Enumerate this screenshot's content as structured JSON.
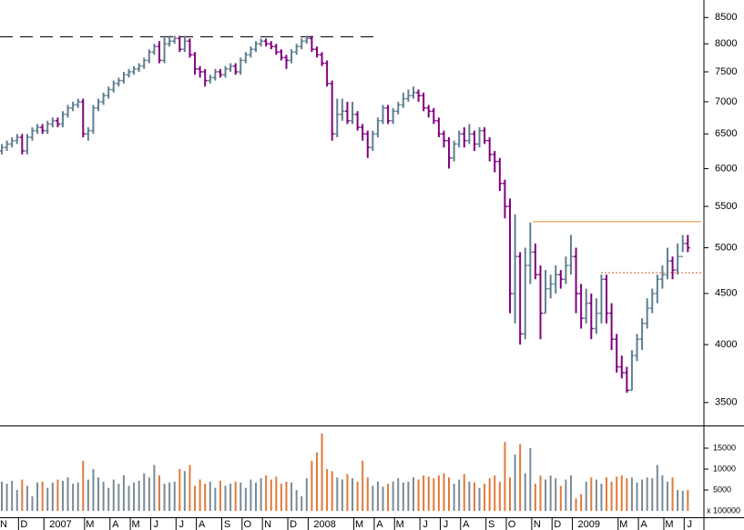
{
  "chart_data": {
    "type": "ohlc",
    "categories": [
      "N",
      null,
      null,
      null,
      "D",
      null,
      null,
      null,
      null,
      "2007",
      null,
      null,
      null,
      null,
      null,
      null,
      null,
      "M",
      null,
      null,
      null,
      null,
      "A",
      null,
      null,
      null,
      "M",
      null,
      null,
      null,
      "J",
      null,
      null,
      null,
      null,
      "J",
      null,
      null,
      null,
      "A",
      null,
      null,
      null,
      null,
      "S",
      null,
      null,
      null,
      "O",
      null,
      null,
      null,
      "N",
      null,
      null,
      null,
      null,
      "D",
      null,
      null,
      null,
      "2008",
      null,
      null,
      null,
      null,
      null,
      null,
      null,
      null,
      "M",
      null,
      null,
      null,
      "A",
      null,
      null,
      null,
      "M",
      null,
      null,
      null,
      null,
      "J",
      null,
      null,
      null,
      "J",
      null,
      null,
      null,
      "A",
      null,
      null,
      null,
      null,
      "S",
      null,
      null,
      null,
      "O",
      null,
      null,
      null,
      null,
      "N",
      null,
      null,
      null,
      "D",
      null,
      null,
      null,
      "2009",
      null,
      null,
      null,
      null,
      null,
      null,
      null,
      null,
      "M",
      null,
      null,
      null,
      "A",
      null,
      null,
      null,
      null,
      "M",
      null,
      null,
      null,
      "J"
    ],
    "open": [
      6250,
      6300,
      6350,
      6400,
      6450,
      6250,
      6450,
      6550,
      6600,
      6550,
      6650,
      6700,
      6650,
      6800,
      6900,
      6950,
      7000,
      6500,
      6550,
      6900,
      7000,
      7100,
      7200,
      7300,
      7350,
      7450,
      7500,
      7550,
      7600,
      7700,
      7850,
      7950,
      7700,
      8000,
      8050,
      8100,
      7900,
      8050,
      7800,
      7550,
      7500,
      7350,
      7400,
      7500,
      7450,
      7550,
      7600,
      7500,
      7700,
      7800,
      7900,
      8000,
      8050,
      8000,
      7950,
      7850,
      7750,
      7700,
      7850,
      7950,
      8050,
      8100,
      7900,
      7800,
      7650,
      7300,
      6500,
      6800,
      6850,
      6700,
      6800,
      6600,
      6500,
      6300,
      6500,
      6700,
      6900,
      6700,
      6850,
      6950,
      7050,
      7100,
      7150,
      7100,
      6900,
      6850,
      6700,
      6500,
      6400,
      6150,
      6350,
      6500,
      6400,
      6500,
      6350,
      6550,
      6400,
      6200,
      6100,
      5800,
      5500,
      4500,
      4900,
      4100,
      4800,
      4950,
      4700,
      4300,
      4550,
      4600,
      4700,
      4650,
      4800,
      4900,
      4500,
      4250,
      4400,
      4150,
      4300,
      4650,
      4300,
      4050,
      3800,
      3750,
      3600,
      3900,
      4050,
      4200,
      4350,
      4500,
      4650,
      4700,
      4850,
      4750,
      4900,
      5050
    ],
    "high": [
      6350,
      6400,
      6450,
      6500,
      6500,
      6500,
      6600,
      6650,
      6650,
      6700,
      6750,
      6750,
      6850,
      6950,
      7000,
      7050,
      7050,
      6600,
      6950,
      7050,
      7150,
      7250,
      7350,
      7400,
      7500,
      7550,
      7600,
      7650,
      7750,
      7900,
      8000,
      8050,
      8150,
      8150,
      8150,
      8150,
      8150,
      8100,
      7850,
      7600,
      7550,
      7450,
      7550,
      7550,
      7600,
      7650,
      7650,
      7750,
      7850,
      7950,
      8050,
      8100,
      8100,
      8050,
      8000,
      7900,
      7800,
      7900,
      8000,
      8100,
      8150,
      8150,
      7950,
      7850,
      7700,
      7350,
      7050,
      7050,
      7000,
      7000,
      6850,
      6650,
      6550,
      6550,
      6750,
      6950,
      6950,
      6900,
      7000,
      7150,
      7200,
      7250,
      7200,
      7150,
      6950,
      6900,
      6750,
      6550,
      6450,
      6400,
      6550,
      6600,
      6650,
      6550,
      6600,
      6600,
      6450,
      6250,
      6150,
      5850,
      5600,
      5400,
      4950,
      5000,
      5300,
      5050,
      4800,
      4750,
      4700,
      4800,
      4750,
      4900,
      5150,
      5000,
      4600,
      4550,
      4500,
      4450,
      4700,
      4700,
      4400,
      4100,
      3900,
      3800,
      3950,
      4100,
      4250,
      4450,
      4550,
      4700,
      4800,
      5000,
      4900,
      5050,
      5150,
      5150
    ],
    "low": [
      6200,
      6250,
      6300,
      6350,
      6200,
      6200,
      6400,
      6500,
      6500,
      6500,
      6600,
      6600,
      6600,
      6750,
      6850,
      6900,
      6450,
      6400,
      6500,
      6850,
      6950,
      7050,
      7150,
      7250,
      7300,
      7400,
      7450,
      7500,
      7550,
      7650,
      7800,
      7650,
      7650,
      7950,
      8000,
      7850,
      7850,
      7750,
      7450,
      7400,
      7250,
      7300,
      7350,
      7400,
      7400,
      7500,
      7450,
      7450,
      7650,
      7750,
      7850,
      7950,
      7950,
      7900,
      7800,
      7700,
      7550,
      7650,
      7800,
      7900,
      8000,
      7850,
      7750,
      7600,
      7250,
      6400,
      6450,
      6700,
      6650,
      6650,
      6550,
      6400,
      6150,
      6250,
      6450,
      6650,
      6650,
      6650,
      6800,
      6900,
      7000,
      7050,
      7000,
      6850,
      6750,
      6650,
      6450,
      6300,
      6000,
      6100,
      6300,
      6300,
      6350,
      6250,
      6300,
      6350,
      6100,
      5950,
      5700,
      5350,
      4300,
      4200,
      4000,
      4050,
      4600,
      4650,
      4050,
      4300,
      4450,
      4500,
      4550,
      4600,
      4700,
      4300,
      4150,
      4200,
      4050,
      4100,
      4200,
      4200,
      3950,
      3750,
      3700,
      3580,
      3600,
      3850,
      3950,
      4150,
      4300,
      4400,
      4550,
      4650,
      4650,
      4700,
      4950,
      4950
    ],
    "close": [
      6300,
      6350,
      6400,
      6450,
      6250,
      6450,
      6550,
      6600,
      6550,
      6650,
      6700,
      6650,
      6800,
      6900,
      6950,
      7000,
      6500,
      6550,
      6900,
      7000,
      7100,
      7200,
      7300,
      7350,
      7450,
      7500,
      7550,
      7600,
      7700,
      7850,
      7950,
      7700,
      8000,
      8050,
      8100,
      7900,
      8050,
      7800,
      7550,
      7500,
      7350,
      7400,
      7500,
      7450,
      7550,
      7600,
      7500,
      7700,
      7800,
      7900,
      8000,
      8050,
      8000,
      7950,
      7850,
      7750,
      7700,
      7850,
      7950,
      8050,
      8100,
      7900,
      7800,
      7650,
      7300,
      6500,
      6800,
      6850,
      6700,
      6800,
      6600,
      6500,
      6300,
      6500,
      6700,
      6900,
      6700,
      6850,
      6950,
      7050,
      7100,
      7150,
      7100,
      6900,
      6850,
      6700,
      6500,
      6400,
      6150,
      6350,
      6500,
      6400,
      6500,
      6350,
      6550,
      6400,
      6200,
      6100,
      5800,
      5500,
      4500,
      4900,
      4100,
      4800,
      4950,
      4700,
      4300,
      4550,
      4600,
      4700,
      4650,
      4800,
      4900,
      4500,
      4250,
      4400,
      4150,
      4300,
      4650,
      4300,
      4050,
      3800,
      3750,
      3600,
      3900,
      4050,
      4200,
      4350,
      4500,
      4650,
      4700,
      4850,
      4750,
      4900,
      5050,
      5000
    ],
    "volume": [
      7000,
      6500,
      7200,
      5000,
      7500,
      6000,
      3500,
      6800,
      7000,
      5500,
      6800,
      7500,
      7200,
      8000,
      6500,
      6800,
      12000,
      7500,
      10000,
      8000,
      7000,
      5500,
      7500,
      6500,
      8500,
      6000,
      6800,
      7200,
      9000,
      8000,
      11000,
      8500,
      6500,
      6800,
      7000,
      10000,
      9500,
      11000,
      6000,
      7500,
      6500,
      7000,
      5500,
      7200,
      6000,
      6500,
      7000,
      6800,
      5500,
      7500,
      6800,
      7800,
      8500,
      7500,
      8200,
      6500,
      7000,
      6800,
      5000,
      3500,
      7800,
      12000,
      14000,
      18500,
      10000,
      9500,
      8000,
      7500,
      8800,
      7800,
      7000,
      12000,
      8000,
      6000,
      7000,
      5800,
      6500,
      7000,
      7800,
      6800,
      7000,
      8000,
      7500,
      8500,
      8200,
      7800,
      8500,
      9000,
      8000,
      6500,
      7500,
      8800,
      7000,
      6800,
      5500,
      6500,
      7800,
      8500,
      7000,
      16500,
      8000,
      13500,
      16000,
      9000,
      15000,
      6500,
      8500,
      7500,
      8500,
      7800,
      6000,
      7500,
      8500,
      3000,
      4000,
      7000,
      8000,
      7500,
      6500,
      8000,
      7000,
      8200,
      8500,
      7800,
      8000,
      6800,
      7500,
      8000,
      7800,
      11000,
      8500,
      7000,
      8000,
      5000,
      4800,
      5000
    ],
    "up_color": "#5f7f8f",
    "down_color": "#800080",
    "volume_up_color": "#7a8a96",
    "volume_down_color": "#e07a3a",
    "log_scale": true,
    "ylim": [
      3320,
      8850
    ],
    "yticks": [
      3500,
      4000,
      4500,
      5000,
      5500,
      6000,
      6500,
      7000,
      7500,
      8000,
      8500
    ],
    "volume_ylim": [
      0,
      20000
    ],
    "volume_yticks": [
      5000,
      10000,
      15000
    ],
    "volume_unit": "x 100000",
    "levels": [
      {
        "value": 8130,
        "color": "#000000",
        "style": "dashed"
      },
      {
        "value": 5310,
        "color": "#e08a30",
        "style": "solid"
      },
      {
        "value": 4720,
        "color": "#e05a20",
        "style": "dotted"
      }
    ]
  }
}
